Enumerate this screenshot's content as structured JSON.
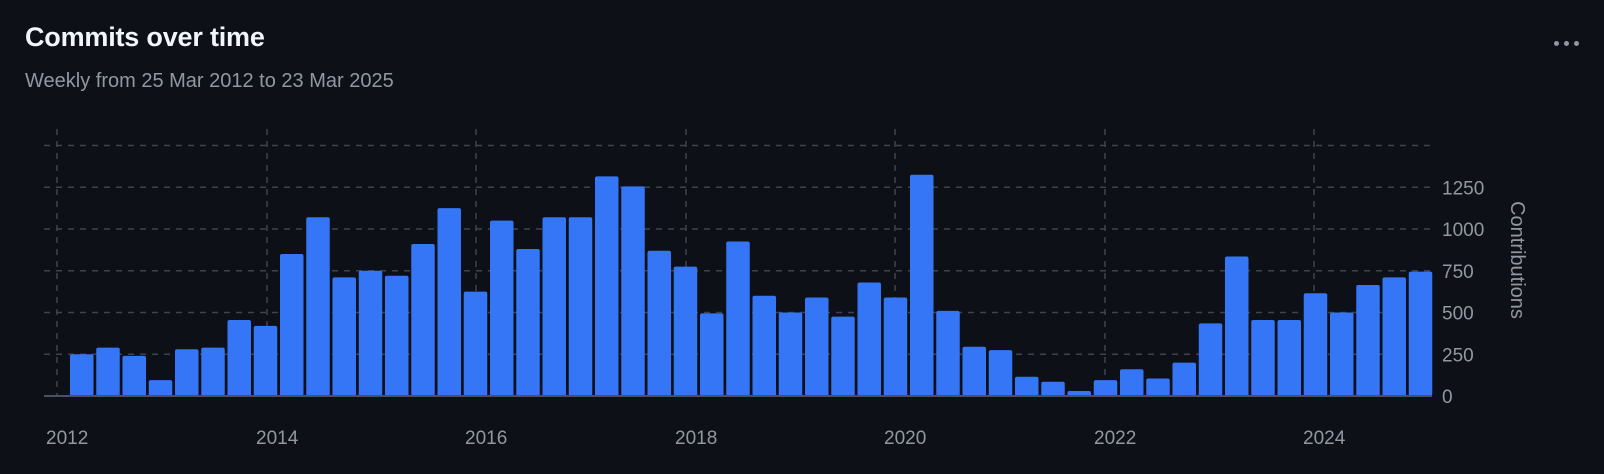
{
  "header": {
    "title": "Commits over time",
    "subtitle": "Weekly from 25 Mar 2012 to 23 Mar 2025",
    "more_icon": "kebab-horizontal-icon"
  },
  "colors": {
    "background": "#0d1117",
    "bar": "#3576f6",
    "grid": "#3d444d",
    "axis": "#3d444d",
    "text_muted": "#9198a1"
  },
  "chart_data": {
    "type": "bar",
    "title": "Commits over time",
    "subtitle": "Weekly from 25 Mar 2012 to 23 Mar 2025",
    "xlabel": "",
    "ylabel": "Contributions",
    "ylim": [
      0,
      1500
    ],
    "yticks": [
      0,
      250,
      500,
      750,
      1000,
      1250
    ],
    "xticks": [
      "2012",
      "2014",
      "2016",
      "2018",
      "2020",
      "2022",
      "2024"
    ],
    "grid": true,
    "y_axis_side": "right",
    "series": [
      {
        "values": [
          250,
          290,
          240,
          95,
          280,
          290,
          455,
          420,
          850,
          1070,
          710,
          750,
          720,
          910,
          1125,
          625,
          1050,
          880,
          1070,
          1070,
          1315,
          1255,
          870,
          775,
          495,
          925,
          600,
          500,
          590,
          475,
          680,
          590,
          1325,
          510,
          295,
          275,
          115,
          85,
          30,
          95,
          160,
          105,
          200,
          435,
          835,
          455,
          455,
          615,
          500,
          665,
          710,
          745
        ]
      }
    ]
  }
}
